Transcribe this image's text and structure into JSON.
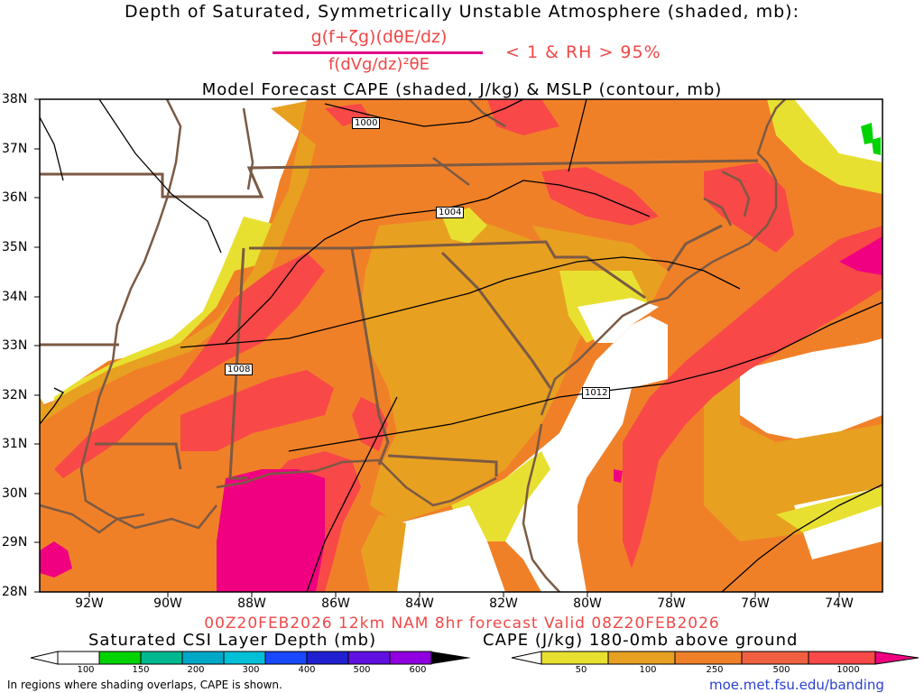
{
  "title": {
    "line1": "Depth of Saturated, Symmetrically Unstable Atmosphere (shaded, mb):",
    "numerator": "g(f+ζg)(dθE/dz)",
    "denominator": "f(dVg/dz)²θE",
    "condition": "< 1 & RH > 95%",
    "line3": "Model Forecast CAPE (shaded, J/kg) & MSLP (contour, mb)"
  },
  "axes": {
    "latitude_labels": [
      "38N",
      "37N",
      "36N",
      "35N",
      "34N",
      "33N",
      "32N",
      "31N",
      "30N",
      "29N",
      "28N"
    ],
    "longitude_labels": [
      "92W",
      "90W",
      "88W",
      "86W",
      "84W",
      "82W",
      "80W",
      "78W",
      "76W",
      "74W"
    ]
  },
  "isobar_labels": [
    "1000",
    "1004",
    "1008",
    "1012"
  ],
  "valid_line": "00Z20FEB2026 12km NAM 8hr forecast Valid 08Z20FEB2026",
  "colorbars": {
    "csi": {
      "label": "Saturated CSI Layer Depth (mb)",
      "ticks": [
        "100",
        "150",
        "200",
        "300",
        "400",
        "500",
        "600"
      ],
      "colors": [
        "#ffffff",
        "#00d400",
        "#00b890",
        "#00a8c8",
        "#1848ff",
        "#2020d0",
        "#9000e0",
        "#000000"
      ]
    },
    "cape": {
      "label": "CAPE (J/kg) 180-0mb above ground",
      "ticks": [
        "50",
        "100",
        "250",
        "500",
        "1000"
      ],
      "colors": [
        "#ffffff",
        "#e8e030",
        "#e8a020",
        "#f08028",
        "#f84848",
        "#f00080"
      ]
    }
  },
  "footnote": "In regions where shading overlaps, CAPE is shown.",
  "url": "moe.met.fsu.edu/banding"
}
